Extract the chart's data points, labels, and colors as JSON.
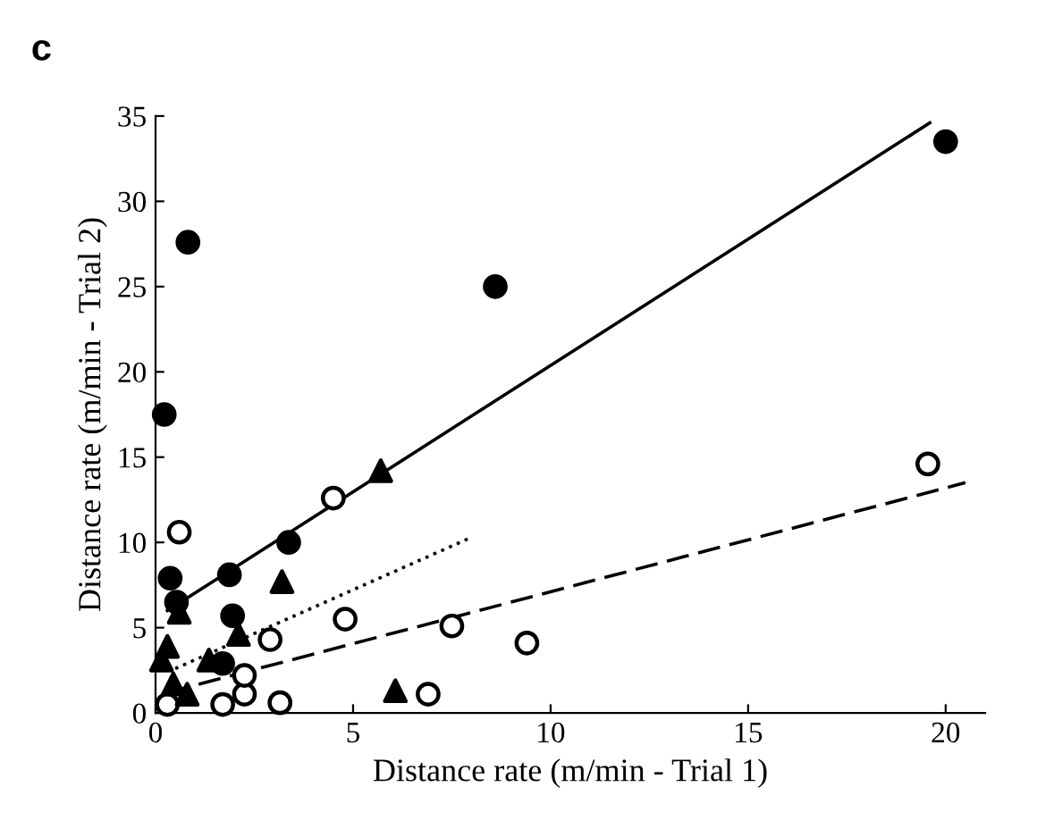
{
  "chart_data": {
    "type": "scatter",
    "xlabel": "Distance rate (m/min - Trial 1)",
    "ylabel": "Distance rate (m/min - Trial 2)",
    "annotations": [
      "c"
    ],
    "xlim": [
      0,
      21
    ],
    "ylim": [
      0,
      35
    ],
    "xticks": [
      0,
      5,
      10,
      15,
      20
    ],
    "yticks": [
      0,
      5,
      10,
      15,
      20,
      25,
      30,
      35
    ],
    "grid": false,
    "legend": false,
    "series": [
      {
        "marker": "circle",
        "color": "#000000",
        "x": [
          0.82,
          8.6,
          0.22,
          3.37,
          1.87,
          0.37,
          0.53,
          1.95,
          1.7,
          20
        ],
        "values": [
          27.6,
          25,
          17.5,
          10.0,
          8.1,
          7.9,
          6.5,
          5.7,
          2.9,
          33.5
        ]
      },
      {
        "marker": "circle",
        "color": "#ffffff",
        "x": [
          4.5,
          0.6,
          4.8,
          7.5,
          9.4,
          2.9,
          6.9,
          3.15,
          2.25,
          2.25,
          1.7,
          0.3,
          19.55
        ],
        "values": [
          12.6,
          10.6,
          5.5,
          5.1,
          4.1,
          4.3,
          1.1,
          0.6,
          1.1,
          2.2,
          0.5,
          0.5,
          14.6
        ]
      },
      {
        "marker": "triangle",
        "color": "#000000",
        "x": [
          5.7,
          3.2,
          6.07,
          0.6,
          2.1,
          0.3,
          0.15,
          1.35,
          0.45,
          0.8
        ],
        "values": [
          14.2,
          7.7,
          1.3,
          5.9,
          4.6,
          3.9,
          3.1,
          3.1,
          1.7,
          1.1
        ]
      },
      {
        "type": "line",
        "line_style": "solid",
        "color": "#000000",
        "x": [
          0.3,
          19.6
        ],
        "values": [
          6.0,
          34.6
        ]
      },
      {
        "type": "line",
        "line_style": "dotted",
        "color": "#000000",
        "x": [
          0.5,
          8.0
        ],
        "values": [
          2.6,
          10.3
        ]
      },
      {
        "type": "line",
        "line_style": "dashed",
        "color": "#000000",
        "x": [
          0.3,
          20.5
        ],
        "values": [
          1.2,
          13.5
        ]
      }
    ]
  }
}
